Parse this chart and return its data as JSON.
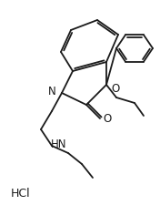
{
  "bg_color": "#ffffff",
  "line_color": "#1a1a1a",
  "line_width": 1.3,
  "font_size": 8.5,
  "label_color": "#1a1a1a",
  "hcl_text": "HCl",
  "nh_text": "HN",
  "n_text": "N",
  "o_carbonyl": "O",
  "o_ethoxy": "O"
}
